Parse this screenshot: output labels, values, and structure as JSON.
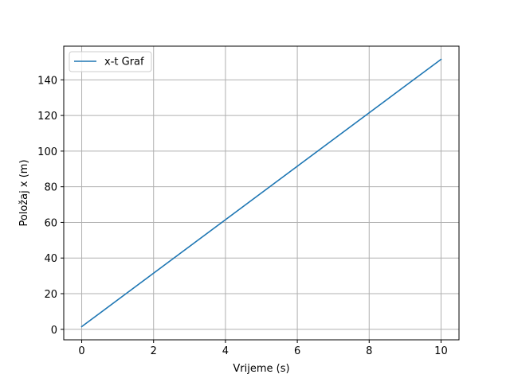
{
  "chart_data": {
    "type": "line",
    "title": "",
    "xlabel": "Vrijeme (s)",
    "ylabel": "Položaj x (m)",
    "xlim": [
      -0.5,
      10.5
    ],
    "ylim": [
      -5.9,
      158.9
    ],
    "xticks": [
      0,
      2,
      4,
      6,
      8,
      10
    ],
    "yticks": [
      0,
      20,
      40,
      60,
      80,
      100,
      120,
      140
    ],
    "grid": true,
    "legend_position": "top-left",
    "series": [
      {
        "name": "x-t Graf",
        "color": "#1f77b4",
        "x": [
          0,
          10
        ],
        "y": [
          1.5,
          151.5
        ]
      }
    ]
  }
}
